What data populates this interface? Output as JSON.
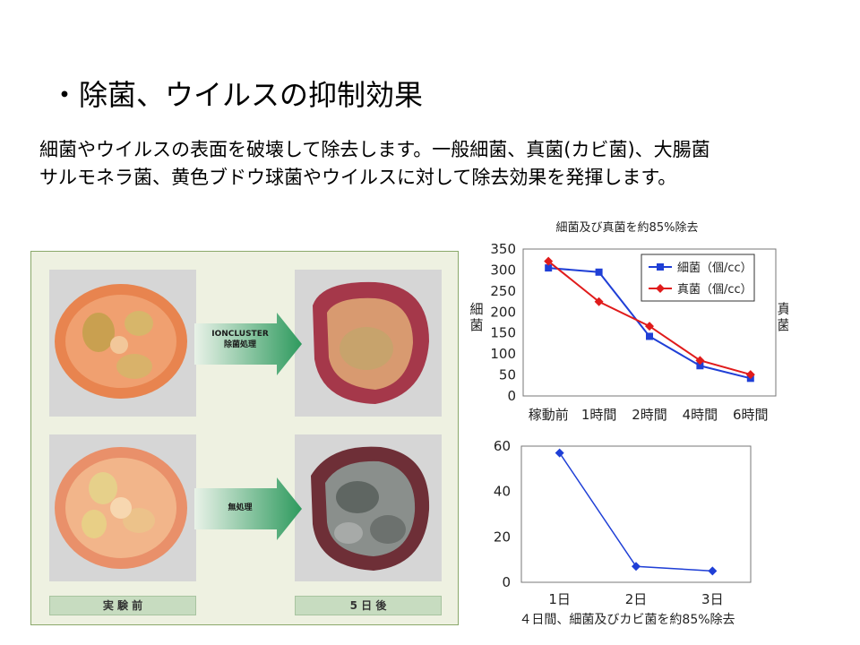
{
  "slide": {
    "title": "・除菌、ウイルスの抑制効果",
    "lines": [
      "細菌やウイルスの表面を破壊して除去します。一般細菌、真菌(カビ菌)、大腸菌",
      "サルモネラ菌、黄色ブドウ球菌やウイルスに対して除去効果を発揮します。"
    ]
  },
  "figure": {
    "top_arrow_line1": "IONCLUSTER",
    "top_arrow_line2": "除菌処理",
    "bottom_arrow": "無処理",
    "caption_before": "実 験 前",
    "caption_after": "5 日 後"
  },
  "chart_data": [
    {
      "type": "line",
      "title": "細菌及び真菌を約85%除去",
      "categories": [
        "稼動前",
        "1時間",
        "2時間",
        "4時間",
        "6時間"
      ],
      "ylabel": "細菌",
      "y2label": "真菌",
      "ylim": [
        0,
        350
      ],
      "y2lim": [
        0,
        1200
      ],
      "yticks": [
        0,
        50,
        100,
        150,
        200,
        250,
        300,
        350
      ],
      "y2ticks": [
        0,
        200,
        400,
        600,
        800,
        1000,
        1200
      ],
      "legend_position": "top-right",
      "grid": false,
      "series": [
        {
          "name": "細菌（個/cc）",
          "axis": "left",
          "color": "#1f3fd6",
          "marker": "square",
          "values": [
            305,
            295,
            142,
            72,
            42
          ]
        },
        {
          "name": "真菌（個/cc）",
          "axis": "right",
          "color": "#e01b1b",
          "marker": "diamond",
          "values": [
            1100,
            770,
            570,
            290,
            175
          ]
        }
      ]
    },
    {
      "type": "line",
      "title": "４日間、細菌及びカビ菌を約85%除去",
      "categories": [
        "1日",
        "2日",
        "3日"
      ],
      "ylim": [
        0,
        60
      ],
      "yticks": [
        0,
        20,
        40,
        60
      ],
      "grid": false,
      "series": [
        {
          "color": "#1f3fd6",
          "marker": "diamond",
          "values": [
            57,
            7,
            5
          ]
        }
      ]
    }
  ]
}
